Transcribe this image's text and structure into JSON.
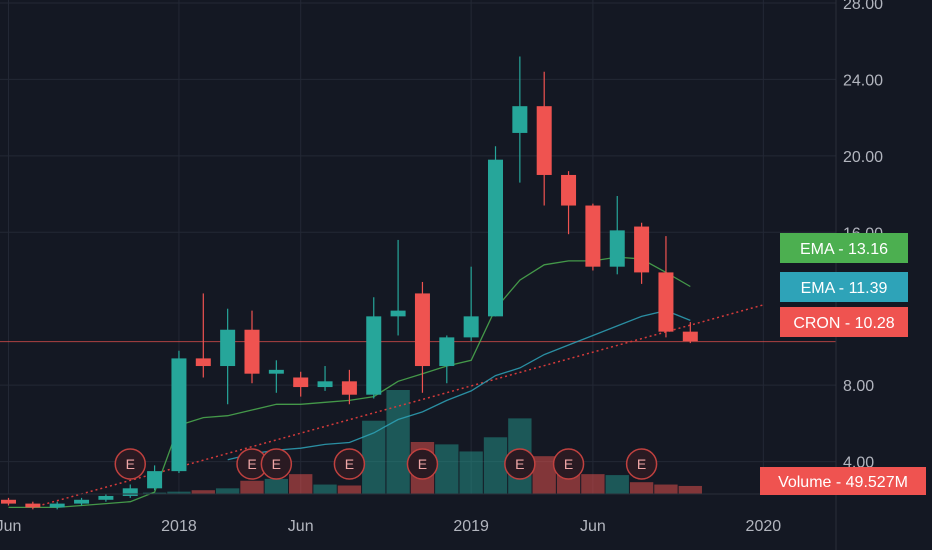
{
  "chart_data": {
    "type": "candlestick",
    "symbol": "CRON",
    "colors": {
      "up": "#26a69a",
      "down": "#ef5350",
      "ema_fast": "#4caf50",
      "ema_slow": "#2ea3b8",
      "trend": "#d63b3b",
      "background": "#141823",
      "grid": "#232835"
    },
    "y_axis": {
      "range": [
        0,
        28
      ],
      "ticks": [
        {
          "value": 4,
          "label": "4.00"
        },
        {
          "value": 8,
          "label": "8.00"
        },
        {
          "value": 16,
          "label": "16.00"
        },
        {
          "value": 20,
          "label": "20.00"
        },
        {
          "value": 24,
          "label": "24.00"
        },
        {
          "value": 28,
          "label": "28.00"
        }
      ]
    },
    "x_axis": {
      "ticks": [
        {
          "label": "Jun",
          "month_index": 0
        },
        {
          "label": "2018",
          "month_index": 7
        },
        {
          "label": "Jun",
          "month_index": 12
        },
        {
          "label": "2019",
          "month_index": 19
        },
        {
          "label": "Jun",
          "month_index": 24
        },
        {
          "label": "2020",
          "month_index": 31
        }
      ]
    },
    "candles": [
      {
        "open": 2.0,
        "high": 2.1,
        "low": 1.7,
        "close": 1.8
      },
      {
        "open": 1.8,
        "high": 1.9,
        "low": 1.5,
        "close": 1.6
      },
      {
        "open": 1.6,
        "high": 1.9,
        "low": 1.5,
        "close": 1.8
      },
      {
        "open": 1.8,
        "high": 2.1,
        "low": 1.7,
        "close": 2.0
      },
      {
        "open": 2.0,
        "high": 2.3,
        "low": 1.9,
        "close": 2.2
      },
      {
        "open": 2.2,
        "high": 2.8,
        "low": 2.1,
        "close": 2.6
      },
      {
        "open": 2.6,
        "high": 3.8,
        "low": 2.5,
        "close": 3.5
      },
      {
        "open": 3.5,
        "high": 9.8,
        "low": 3.4,
        "close": 9.4
      },
      {
        "open": 9.4,
        "high": 12.8,
        "low": 8.4,
        "close": 9.0
      },
      {
        "open": 9.0,
        "high": 12.0,
        "low": 7.0,
        "close": 10.9
      },
      {
        "open": 10.9,
        "high": 11.9,
        "low": 8.1,
        "close": 8.6
      },
      {
        "open": 8.6,
        "high": 9.3,
        "low": 7.6,
        "close": 8.8
      },
      {
        "open": 8.4,
        "high": 8.7,
        "low": 7.4,
        "close": 7.9
      },
      {
        "open": 7.9,
        "high": 9.0,
        "low": 7.7,
        "close": 8.2
      },
      {
        "open": 8.2,
        "high": 8.8,
        "low": 7.0,
        "close": 7.5
      },
      {
        "open": 7.5,
        "high": 12.6,
        "low": 7.3,
        "close": 11.6
      },
      {
        "open": 11.6,
        "high": 15.6,
        "low": 10.6,
        "close": 11.9
      },
      {
        "open": 12.8,
        "high": 13.4,
        "low": 7.6,
        "close": 9.0
      },
      {
        "open": 9.0,
        "high": 10.6,
        "low": 8.1,
        "close": 10.5
      },
      {
        "open": 10.5,
        "high": 14.2,
        "low": 10.3,
        "close": 11.6
      },
      {
        "open": 11.6,
        "high": 20.5,
        "low": 11.6,
        "close": 19.8
      },
      {
        "open": 21.2,
        "high": 25.2,
        "low": 18.6,
        "close": 22.6
      },
      {
        "open": 22.6,
        "high": 24.4,
        "low": 17.4,
        "close": 19.0
      },
      {
        "open": 19.0,
        "high": 19.2,
        "low": 15.9,
        "close": 17.4
      },
      {
        "open": 17.4,
        "high": 17.5,
        "low": 14.0,
        "close": 14.2
      },
      {
        "open": 14.2,
        "high": 17.9,
        "low": 13.8,
        "close": 16.1
      },
      {
        "open": 16.3,
        "high": 16.5,
        "low": 13.3,
        "close": 13.9
      },
      {
        "open": 13.9,
        "high": 15.8,
        "low": 10.5,
        "close": 10.8
      },
      {
        "open": 10.8,
        "high": 11.3,
        "low": 10.2,
        "close": 10.3
      }
    ],
    "ema_fast": [
      1.6,
      1.6,
      1.6,
      1.7,
      1.8,
      1.9,
      2.4,
      5.9,
      6.3,
      6.4,
      6.7,
      7.0,
      7.0,
      7.1,
      7.2,
      7.4,
      8.2,
      8.6,
      9.0,
      9.3,
      12.0,
      13.5,
      14.3,
      14.5,
      14.5,
      14.7,
      14.6,
      13.9,
      13.16
    ],
    "ema_slow": [
      null,
      null,
      null,
      null,
      null,
      null,
      null,
      null,
      null,
      4.1,
      4.4,
      4.6,
      4.7,
      4.9,
      5.0,
      5.5,
      6.2,
      6.6,
      7.2,
      7.7,
      8.5,
      8.9,
      9.6,
      10.1,
      10.6,
      11.1,
      11.6,
      11.9,
      11.39
    ],
    "trend_line": {
      "start": {
        "month_index": 1,
        "value": 1.6
      },
      "end": {
        "month_index": 31,
        "value": 12.2
      }
    },
    "price_line": {
      "value": 10.28
    },
    "volume": [
      0,
      0,
      0,
      0,
      0,
      0,
      0.3,
      0.5,
      0.8,
      1.2,
      2.8,
      3.2,
      4.2,
      2.0,
      1.8,
      15.5,
      22.0,
      11.0,
      10.5,
      9.0,
      12.0,
      16.0,
      8.0,
      5.5,
      4.2,
      4.0,
      2.5,
      2.0,
      1.7
    ],
    "volume_max": 22,
    "earnings_markers": [
      {
        "month_index": 5,
        "label": "E"
      },
      {
        "month_index": 10,
        "label": "E"
      },
      {
        "month_index": 11,
        "label": "E"
      },
      {
        "month_index": 14,
        "label": "E"
      },
      {
        "month_index": 17,
        "label": "E"
      },
      {
        "month_index": 21,
        "label": "E"
      },
      {
        "month_index": 23,
        "label": "E"
      },
      {
        "month_index": 26,
        "label": "E"
      }
    ],
    "price_tags": [
      {
        "name": "ema-fast",
        "label": "EMA",
        "value": "13.16",
        "color": "#4caf50"
      },
      {
        "name": "ema-slow",
        "label": "EMA",
        "value": "11.39",
        "color": "#2ea3b8"
      },
      {
        "name": "price",
        "label": "CRON",
        "value": "10.28",
        "color": "#ef5350"
      }
    ],
    "volume_tag": {
      "label": "Volume",
      "value": "49.527M",
      "color": "#ef5350"
    }
  }
}
